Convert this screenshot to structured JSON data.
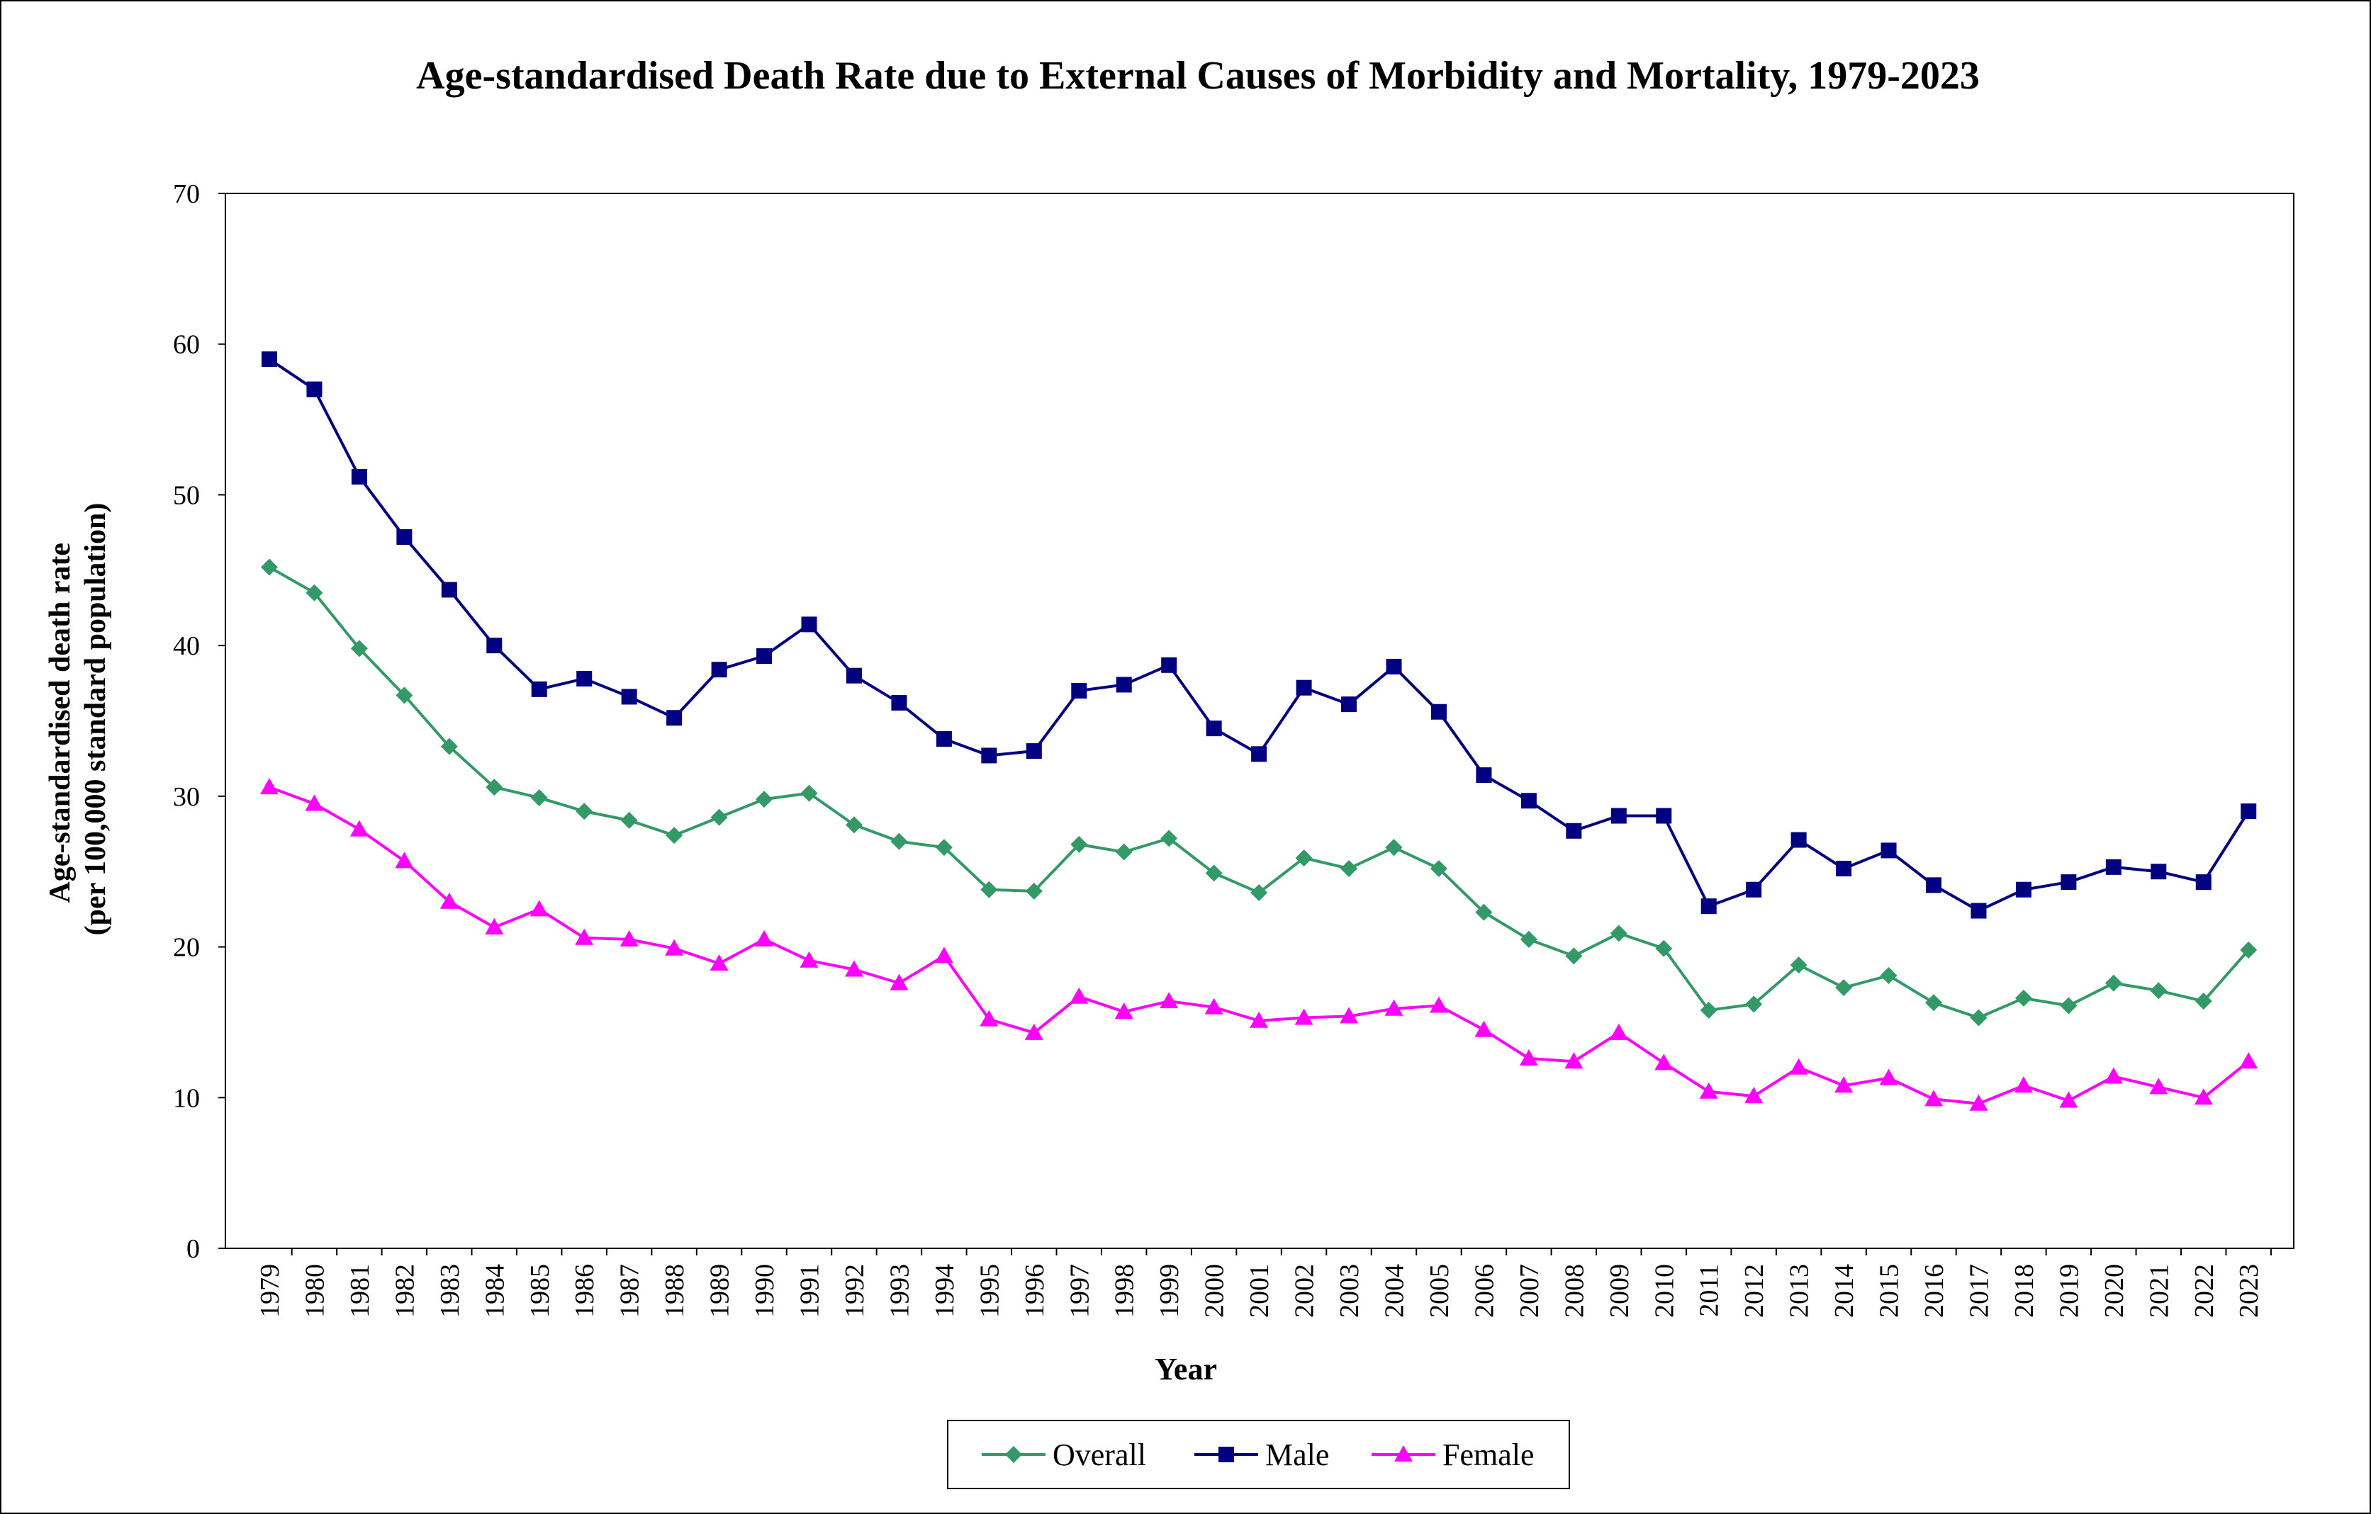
{
  "chart_data": {
    "type": "line",
    "title": "Age-standardised Death Rate due to External Causes of Morbidity and Mortality, 1979-2023",
    "xlabel": "Year",
    "ylabel_line1": "Age-standardised death rate",
    "ylabel_line2": "(per 100,000 standard population)",
    "ylim": [
      0,
      70
    ],
    "yticks": [
      "0",
      "10",
      "20",
      "30",
      "40",
      "50",
      "60",
      "70"
    ],
    "grid": false,
    "legend_position": "bottom",
    "categories": [
      "1979",
      "1980",
      "1981",
      "1982",
      "1983",
      "1984",
      "1985",
      "1986",
      "1987",
      "1988",
      "1989",
      "1990",
      "1991",
      "1992",
      "1993",
      "1994",
      "1995",
      "1996",
      "1997",
      "1998",
      "1999",
      "2000",
      "2001",
      "2002",
      "2003",
      "2004",
      "2005",
      "2006",
      "2007",
      "2008",
      "2009",
      "2010",
      "2011",
      "2012",
      "2013",
      "2014",
      "2015",
      "2016",
      "2017",
      "2018",
      "2019",
      "2020",
      "2021",
      "2022",
      "2023"
    ],
    "series": [
      {
        "name": "Overall",
        "color": "#339966",
        "marker": "diamond",
        "values": [
          45.2,
          43.5,
          39.8,
          36.7,
          33.3,
          30.6,
          29.9,
          29.0,
          28.4,
          27.4,
          28.6,
          29.8,
          30.2,
          28.1,
          27.0,
          26.6,
          23.8,
          23.7,
          26.8,
          26.3,
          27.2,
          24.9,
          23.6,
          25.9,
          25.2,
          26.6,
          25.2,
          22.3,
          20.5,
          19.4,
          20.9,
          19.9,
          15.8,
          16.2,
          18.8,
          17.3,
          18.1,
          16.3,
          15.3,
          16.6,
          16.1,
          17.6,
          17.1,
          16.4,
          19.8
        ]
      },
      {
        "name": "Male",
        "color": "#000080",
        "marker": "square",
        "values": [
          59.0,
          57.0,
          51.2,
          47.2,
          43.7,
          40.0,
          37.1,
          37.8,
          36.6,
          35.2,
          38.4,
          39.3,
          41.4,
          38.0,
          36.2,
          33.8,
          32.7,
          33.0,
          37.0,
          37.4,
          38.7,
          34.5,
          32.8,
          37.2,
          36.1,
          38.6,
          35.6,
          31.4,
          29.7,
          27.7,
          28.7,
          28.7,
          22.7,
          23.8,
          27.1,
          25.2,
          26.4,
          24.1,
          22.4,
          23.8,
          24.3,
          25.3,
          25.0,
          24.3,
          29.0
        ]
      },
      {
        "name": "Female",
        "color": "#FF00FF",
        "marker": "triangle",
        "values": [
          30.6,
          29.5,
          27.8,
          25.7,
          23.0,
          21.3,
          22.5,
          20.6,
          20.5,
          19.9,
          18.9,
          20.5,
          19.1,
          18.5,
          17.6,
          19.4,
          15.2,
          14.3,
          16.7,
          15.7,
          16.4,
          16.0,
          15.1,
          15.3,
          15.4,
          15.9,
          16.1,
          14.5,
          12.6,
          12.4,
          14.3,
          12.3,
          10.4,
          10.1,
          12.0,
          10.8,
          11.3,
          9.9,
          9.6,
          10.8,
          9.8,
          11.4,
          10.7,
          10.0,
          12.4
        ]
      }
    ]
  }
}
